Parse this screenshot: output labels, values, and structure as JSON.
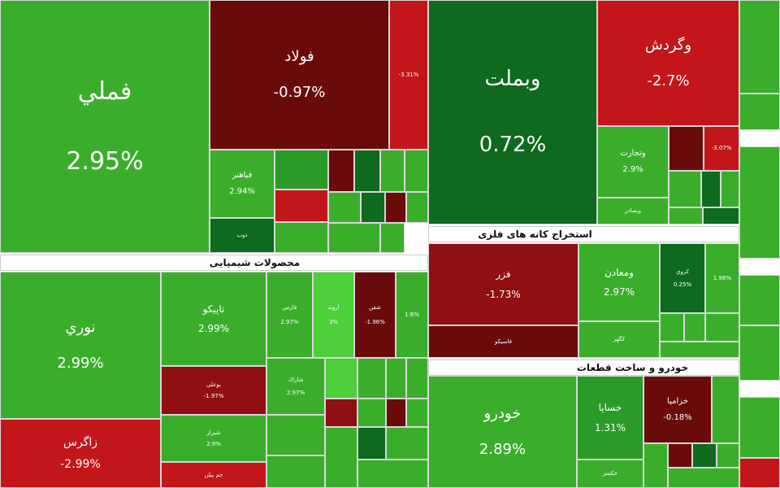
{
  "sections": [
    "محصولات شیمیایی",
    "استخراج کانه های فلزی",
    "خودرو و ساخت قطعات"
  ],
  "tiles": [
    {
      "name": "فملي",
      "change": "2.95%"
    },
    {
      "name": "فولاد",
      "change": "-0.97%"
    },
    {
      "change": "-3.31%"
    },
    {
      "name": "فباهنر",
      "change": "2.94%"
    },
    {
      "name": "ذوب"
    },
    {
      "name": "نوري",
      "change": "2.99%"
    },
    {
      "name": "زاگرس",
      "change": "-2.99%"
    },
    {
      "name": "تاپيكو",
      "change": "2.99%"
    },
    {
      "name": "بوعلي",
      "change": "-1.97%"
    },
    {
      "name": "شيراز",
      "change": "2.9%"
    },
    {
      "name": "جم پيلن"
    },
    {
      "name": "فارس",
      "change": "2.97%"
    },
    {
      "name": "اروند",
      "change": "3%"
    },
    {
      "name": "شفن",
      "change": "-1.96%"
    },
    {
      "change": "1.6%"
    },
    {
      "name": "شاراك",
      "change": "2.97%"
    },
    {
      "name": "وبملت",
      "change": "0.72%"
    },
    {
      "name": "وگردش",
      "change": "-2.7%"
    },
    {
      "name": "وتجارت",
      "change": "2.9%"
    },
    {
      "name": "وبصادر"
    },
    {
      "change": "-3.07%"
    },
    {
      "name": "فزر",
      "change": "-1.73%"
    },
    {
      "name": "فاسيكو"
    },
    {
      "name": "ومعادن",
      "change": "2.97%"
    },
    {
      "name": "كگهر"
    },
    {
      "name": "كروي",
      "change": "0.25%"
    },
    {
      "change": "1.98%"
    },
    {
      "name": "خودرو",
      "change": "2.89%"
    },
    {
      "name": "خساپا",
      "change": "1.31%"
    },
    {
      "name": "خكمتر"
    },
    {
      "name": "خزاميا",
      "change": "-0.18%"
    }
  ]
}
